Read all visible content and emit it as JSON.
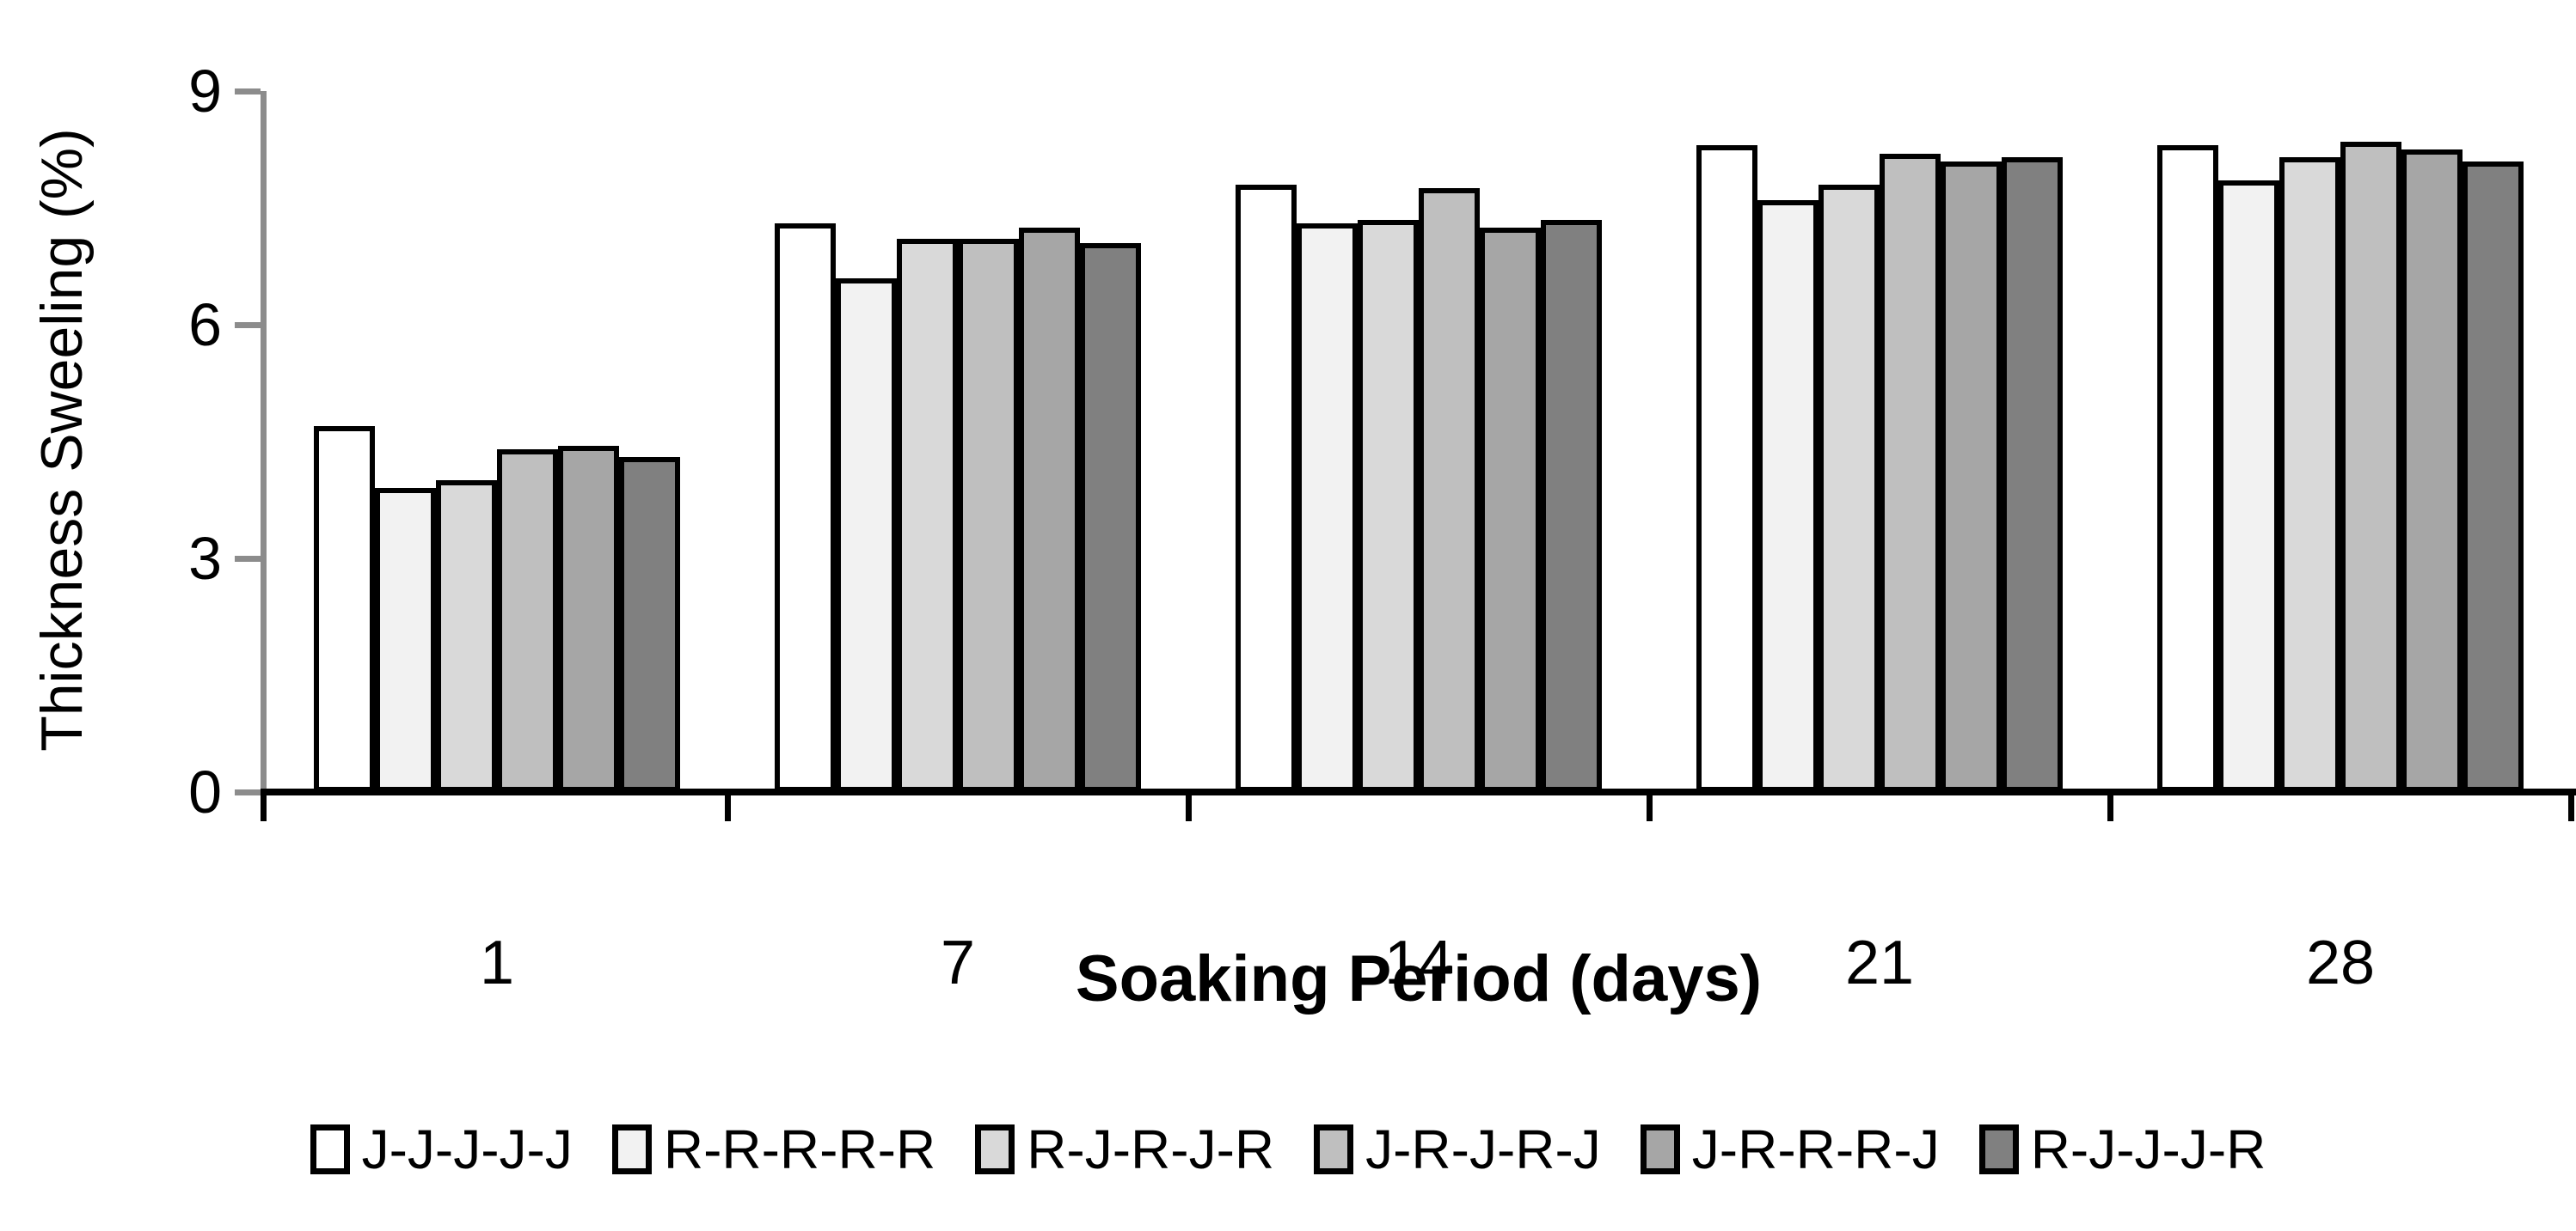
{
  "chart_data": {
    "type": "bar",
    "title": "",
    "xlabel": "Soaking Period (days)",
    "ylabel": "Thickness Sweeling (%)",
    "categories": [
      "1",
      "7",
      "14",
      "21",
      "28"
    ],
    "series": [
      {
        "name": "J-J-J-J-J",
        "fill": "#FFFFFF",
        "values": [
          4.7,
          7.3,
          7.8,
          8.3,
          8.3
        ]
      },
      {
        "name": "R-R-R-R-R",
        "fill": "#F2F2F2",
        "values": [
          3.9,
          6.6,
          7.3,
          7.6,
          7.85
        ]
      },
      {
        "name": "R-J-R-J-R",
        "fill": "#D9D9D9",
        "values": [
          4.0,
          7.1,
          7.35,
          7.8,
          8.15
        ]
      },
      {
        "name": "J-R-J-R-J",
        "fill": "#BFBFBF",
        "values": [
          4.4,
          7.1,
          7.75,
          8.2,
          8.35
        ]
      },
      {
        "name": "J-R-R-R-J",
        "fill": "#A6A6A6",
        "values": [
          4.45,
          7.25,
          7.25,
          8.1,
          8.25
        ]
      },
      {
        "name": "R-J-J-J-R",
        "fill": "#808080",
        "values": [
          4.3,
          7.05,
          7.35,
          8.15,
          8.1
        ]
      }
    ],
    "ylim": [
      0,
      9
    ],
    "yticks": [
      0,
      3,
      6,
      9
    ],
    "grid": false,
    "legend_position": "bottom",
    "bar_border_color": "#000000",
    "y_axis_color": "#8C8C8C",
    "x_axis_color": "#000000"
  }
}
